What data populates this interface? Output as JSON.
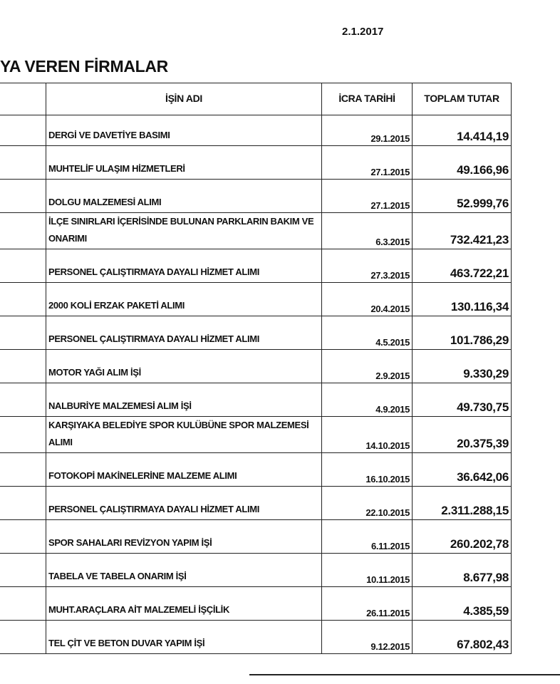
{
  "header": {
    "date": "2.1.2017",
    "title": "YA VEREN FİRMALAR"
  },
  "table": {
    "columns": [
      "",
      "İŞİN ADI",
      "İCRA TARİHİ",
      "TOPLAM TUTAR"
    ],
    "rows": [
      {
        "name": "DERGİ VE DAVETİYE BASIMI",
        "date": "29.1.2015",
        "total": "14.414,19"
      },
      {
        "name": "MUHTELİF ULAŞIM HİZMETLERİ",
        "date": "27.1.2015",
        "total": "49.166,96"
      },
      {
        "name": "DOLGU MALZEMESİ ALIMI",
        "date": "27.1.2015",
        "total": "52.999,76"
      },
      {
        "name": "İLÇE SINIRLARI İÇERİSİNDE BULUNAN PARKLARIN BAKIM VE ONARIMI",
        "date": "6.3.2015",
        "total": "732.421,23"
      },
      {
        "name": "PERSONEL ÇALIŞTIRMAYA DAYALI HİZMET ALIMI",
        "date": "27.3.2015",
        "total": "463.722,21"
      },
      {
        "name": "2000 KOLİ ERZAK PAKETİ ALIMI",
        "date": "20.4.2015",
        "total": "130.116,34"
      },
      {
        "name": "PERSONEL ÇALIŞTIRMAYA DAYALI HİZMET ALIMI",
        "date": "4.5.2015",
        "total": "101.786,29"
      },
      {
        "name": "MOTOR YAĞI ALIM İŞİ",
        "date": "2.9.2015",
        "total": "9.330,29"
      },
      {
        "name": "NALBURİYE MALZEMESİ ALIM İŞİ",
        "date": "4.9.2015",
        "total": "49.730,75"
      },
      {
        "name": "KARŞIYAKA BELEDİYE SPOR KULÜBÜNE SPOR MALZEMESİ ALIMI",
        "date": "14.10.2015",
        "total": "20.375,39"
      },
      {
        "name": "FOTOKOPİ MAKİNELERİNE MALZEME ALIMI",
        "date": "16.10.2015",
        "total": "36.642,06"
      },
      {
        "name": "PERSONEL ÇALIŞTIRMAYA DAYALI HİZMET ALIMI",
        "date": "22.10.2015",
        "total": "2.311.288,15"
      },
      {
        "name": "SPOR SAHALARI REVİZYON YAPIM İŞİ",
        "date": "6.11.2015",
        "total": "260.202,78"
      },
      {
        "name": "TABELA VE TABELA ONARIM İŞİ",
        "date": "10.11.2015",
        "total": "8.677,98"
      },
      {
        "name": "MUHT.ARAÇLARA AİT MALZEMELİ İŞÇİLİK",
        "date": "26.11.2015",
        "total": "4.385,59"
      },
      {
        "name": "TEL ÇİT VE BETON DUVAR YAPIM İŞİ",
        "date": "9.12.2015",
        "total": "67.802,43"
      }
    ]
  }
}
